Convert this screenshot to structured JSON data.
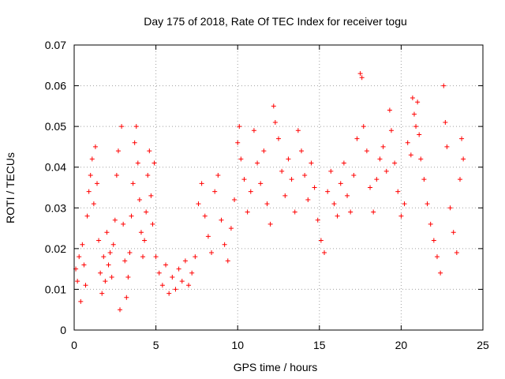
{
  "chart_data": {
    "type": "scatter",
    "title": "Day 175 of 2018, Rate Of TEC Index for receiver togu",
    "xlabel": "GPS time / hours",
    "ylabel": "ROTI / TECUs",
    "xlim": [
      0,
      25
    ],
    "ylim": [
      0,
      0.07
    ],
    "xticks": [
      0,
      5,
      10,
      15,
      20,
      25
    ],
    "xtick_labels": [
      "0",
      "5",
      "10",
      "15",
      "20",
      "25"
    ],
    "yticks": [
      0,
      0.01,
      0.02,
      0.03,
      0.04,
      0.05,
      0.06,
      0.07
    ],
    "ytick_labels": [
      "0",
      "0.01",
      "0.02",
      "0.03",
      "0.04",
      "0.05",
      "0.06",
      "0.07"
    ],
    "grid": true,
    "marker": "plus",
    "color": "#ff0000",
    "series": [
      {
        "points": [
          [
            0.1,
            0.015
          ],
          [
            0.2,
            0.012
          ],
          [
            0.3,
            0.018
          ],
          [
            0.4,
            0.007
          ],
          [
            0.5,
            0.021
          ],
          [
            0.6,
            0.016
          ],
          [
            0.7,
            0.011
          ],
          [
            0.8,
            0.028
          ],
          [
            0.9,
            0.034
          ],
          [
            1.0,
            0.038
          ],
          [
            1.1,
            0.042
          ],
          [
            1.2,
            0.031
          ],
          [
            1.3,
            0.045
          ],
          [
            1.4,
            0.036
          ],
          [
            1.5,
            0.022
          ],
          [
            1.6,
            0.014
          ],
          [
            1.7,
            0.009
          ],
          [
            1.8,
            0.018
          ],
          [
            1.9,
            0.012
          ],
          [
            2.0,
            0.024
          ],
          [
            2.1,
            0.016
          ],
          [
            2.2,
            0.019
          ],
          [
            2.3,
            0.013
          ],
          [
            2.4,
            0.021
          ],
          [
            2.5,
            0.027
          ],
          [
            2.6,
            0.038
          ],
          [
            2.7,
            0.044
          ],
          [
            2.8,
            0.005
          ],
          [
            2.9,
            0.05
          ],
          [
            3.0,
            0.026
          ],
          [
            3.1,
            0.017
          ],
          [
            3.2,
            0.008
          ],
          [
            3.3,
            0.013
          ],
          [
            3.4,
            0.019
          ],
          [
            3.5,
            0.028
          ],
          [
            3.6,
            0.036
          ],
          [
            3.7,
            0.046
          ],
          [
            3.8,
            0.05
          ],
          [
            3.9,
            0.041
          ],
          [
            4.0,
            0.032
          ],
          [
            4.1,
            0.024
          ],
          [
            4.2,
            0.018
          ],
          [
            4.3,
            0.022
          ],
          [
            4.4,
            0.029
          ],
          [
            4.5,
            0.038
          ],
          [
            4.6,
            0.044
          ],
          [
            4.7,
            0.033
          ],
          [
            4.8,
            0.026
          ],
          [
            4.9,
            0.041
          ],
          [
            5.0,
            0.018
          ],
          [
            5.2,
            0.014
          ],
          [
            5.4,
            0.011
          ],
          [
            5.6,
            0.016
          ],
          [
            5.8,
            0.009
          ],
          [
            6.0,
            0.013
          ],
          [
            6.2,
            0.01
          ],
          [
            6.4,
            0.015
          ],
          [
            6.6,
            0.012
          ],
          [
            6.8,
            0.017
          ],
          [
            7.0,
            0.011
          ],
          [
            7.2,
            0.014
          ],
          [
            7.4,
            0.018
          ],
          [
            7.6,
            0.031
          ],
          [
            7.8,
            0.036
          ],
          [
            8.0,
            0.028
          ],
          [
            8.2,
            0.023
          ],
          [
            8.4,
            0.019
          ],
          [
            8.6,
            0.034
          ],
          [
            8.8,
            0.038
          ],
          [
            9.0,
            0.027
          ],
          [
            9.2,
            0.021
          ],
          [
            9.4,
            0.017
          ],
          [
            9.6,
            0.025
          ],
          [
            9.8,
            0.032
          ],
          [
            10.0,
            0.046
          ],
          [
            10.1,
            0.05
          ],
          [
            10.2,
            0.042
          ],
          [
            10.4,
            0.037
          ],
          [
            10.6,
            0.029
          ],
          [
            10.8,
            0.034
          ],
          [
            11.0,
            0.049
          ],
          [
            11.2,
            0.041
          ],
          [
            11.4,
            0.036
          ],
          [
            11.6,
            0.044
          ],
          [
            11.8,
            0.031
          ],
          [
            12.0,
            0.026
          ],
          [
            12.2,
            0.055
          ],
          [
            12.3,
            0.051
          ],
          [
            12.5,
            0.047
          ],
          [
            12.7,
            0.039
          ],
          [
            12.9,
            0.033
          ],
          [
            13.1,
            0.042
          ],
          [
            13.3,
            0.037
          ],
          [
            13.5,
            0.029
          ],
          [
            13.7,
            0.049
          ],
          [
            13.9,
            0.044
          ],
          [
            14.1,
            0.038
          ],
          [
            14.3,
            0.032
          ],
          [
            14.5,
            0.041
          ],
          [
            14.7,
            0.035
          ],
          [
            14.9,
            0.027
          ],
          [
            15.1,
            0.022
          ],
          [
            15.3,
            0.019
          ],
          [
            15.5,
            0.034
          ],
          [
            15.7,
            0.039
          ],
          [
            15.9,
            0.031
          ],
          [
            16.1,
            0.028
          ],
          [
            16.3,
            0.036
          ],
          [
            16.5,
            0.041
          ],
          [
            16.7,
            0.033
          ],
          [
            16.9,
            0.029
          ],
          [
            17.1,
            0.038
          ],
          [
            17.3,
            0.047
          ],
          [
            17.5,
            0.063
          ],
          [
            17.6,
            0.062
          ],
          [
            17.7,
            0.05
          ],
          [
            17.9,
            0.044
          ],
          [
            18.1,
            0.035
          ],
          [
            18.3,
            0.029
          ],
          [
            18.5,
            0.037
          ],
          [
            18.7,
            0.042
          ],
          [
            18.9,
            0.045
          ],
          [
            19.1,
            0.039
          ],
          [
            19.3,
            0.054
          ],
          [
            19.4,
            0.049
          ],
          [
            19.6,
            0.041
          ],
          [
            19.8,
            0.034
          ],
          [
            20.0,
            0.028
          ],
          [
            20.2,
            0.031
          ],
          [
            20.4,
            0.046
          ],
          [
            20.6,
            0.043
          ],
          [
            20.7,
            0.057
          ],
          [
            20.8,
            0.053
          ],
          [
            20.9,
            0.05
          ],
          [
            21.0,
            0.056
          ],
          [
            21.1,
            0.048
          ],
          [
            21.2,
            0.042
          ],
          [
            21.4,
            0.037
          ],
          [
            21.6,
            0.031
          ],
          [
            21.8,
            0.026
          ],
          [
            22.0,
            0.022
          ],
          [
            22.2,
            0.018
          ],
          [
            22.4,
            0.014
          ],
          [
            22.6,
            0.06
          ],
          [
            22.7,
            0.051
          ],
          [
            22.8,
            0.045
          ],
          [
            23.0,
            0.03
          ],
          [
            23.2,
            0.024
          ],
          [
            23.4,
            0.019
          ],
          [
            23.6,
            0.037
          ],
          [
            23.7,
            0.047
          ],
          [
            23.8,
            0.042
          ]
        ]
      }
    ]
  }
}
